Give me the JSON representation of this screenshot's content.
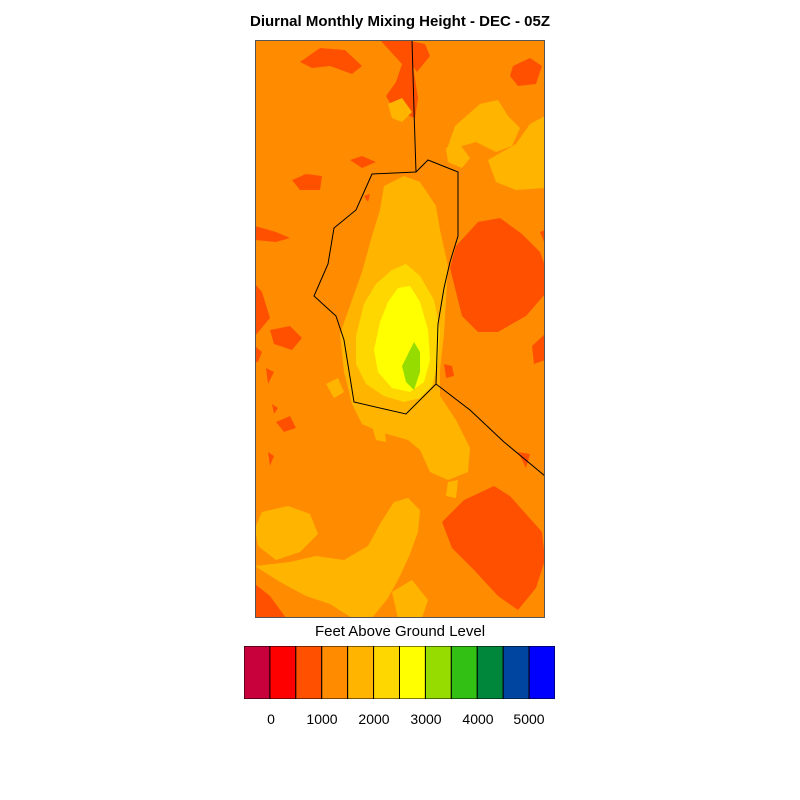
{
  "title": "Diurnal Monthly Mixing Height - DEC - 05Z",
  "legend": {
    "title": "Feet Above Ground Level",
    "colors": [
      "#c8003c",
      "#ff0000",
      "#ff5000",
      "#ff8c00",
      "#ffb400",
      "#ffd700",
      "#ffff00",
      "#96dc00",
      "#32c014",
      "#00873c",
      "#0046a0",
      "#0000ff"
    ],
    "tick_labels": [
      "0",
      "1000",
      "2000",
      "3000",
      "4000",
      "5000"
    ]
  },
  "map_colors": {
    "background": "#ff8c00",
    "low": "#ff5000",
    "mid": "#ffb400",
    "mid_high": "#ffd700",
    "high": "#ffff00",
    "peak": "#96dc00",
    "boundary": "#000000"
  }
}
